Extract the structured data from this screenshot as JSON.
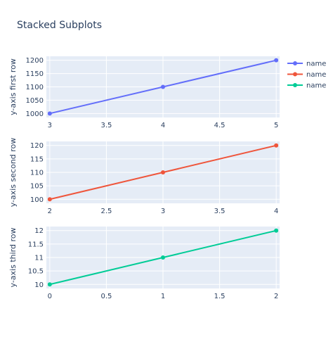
{
  "chart_data": {
    "type": "line",
    "title": "Stacked Subplots",
    "grid": true,
    "legend_placement": "top-right",
    "legend": [
      {
        "name": "name",
        "color": "#636efa"
      },
      {
        "name": "name",
        "color": "#ef553b"
      },
      {
        "name": "name",
        "color": "#00cc96"
      }
    ],
    "subplots": [
      {
        "ylabel": "y-axis first row",
        "xlim": [
          2.97,
          5.03
        ],
        "ylim": [
          985,
          1215
        ],
        "xticks": [
          3,
          3.5,
          4,
          4.5,
          5
        ],
        "xtick_labels": [
          "3",
          "3.5",
          "4",
          "4.5",
          "5"
        ],
        "yticks": [
          1000,
          1050,
          1100,
          1150,
          1200
        ],
        "ytick_labels": [
          "1000",
          "1050",
          "1100",
          "1150",
          "1200"
        ],
        "series": [
          {
            "name": "name",
            "color": "#636efa",
            "x": [
              3,
              4,
              5
            ],
            "y": [
              1000,
              1100,
              1200
            ]
          }
        ]
      },
      {
        "ylabel": "y-axis second row",
        "xlim": [
          1.97,
          4.03
        ],
        "ylim": [
          98.5,
          121.5
        ],
        "xticks": [
          2,
          2.5,
          3,
          3.5,
          4
        ],
        "xtick_labels": [
          "2",
          "2.5",
          "3",
          "3.5",
          "4"
        ],
        "yticks": [
          100,
          105,
          110,
          115,
          120
        ],
        "ytick_labels": [
          "100",
          "105",
          "110",
          "115",
          "120"
        ],
        "series": [
          {
            "name": "name",
            "color": "#ef553b",
            "x": [
              2,
              3,
              4
            ],
            "y": [
              100,
              110,
              120
            ]
          }
        ]
      },
      {
        "ylabel": "y-axis third row",
        "xlim": [
          -0.03,
          2.03
        ],
        "ylim": [
          9.85,
          12.15
        ],
        "xticks": [
          0,
          0.5,
          1,
          1.5,
          2
        ],
        "xtick_labels": [
          "0",
          "0.5",
          "1",
          "1.5",
          "2"
        ],
        "yticks": [
          10,
          10.5,
          11,
          11.5,
          12
        ],
        "ytick_labels": [
          "10",
          "10.5",
          "11",
          "11.5",
          "12"
        ],
        "series": [
          {
            "name": "name",
            "color": "#00cc96",
            "x": [
              0,
              1,
              2
            ],
            "y": [
              10,
              11,
              12
            ]
          }
        ]
      }
    ]
  }
}
